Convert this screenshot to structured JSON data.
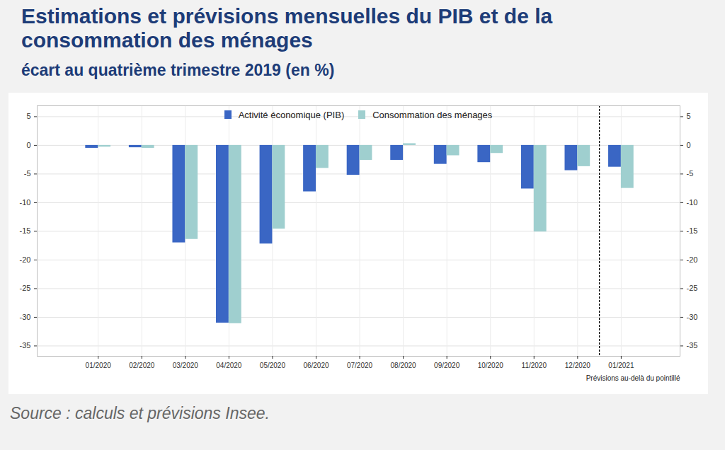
{
  "chart_data": {
    "type": "bar",
    "title": "Estimations et prévisions mensuelles du PIB et de la consommation des ménages",
    "subtitle": "écart au quatrième trimestre 2019 (en %)",
    "caption": "Source : calculs et prévisions Insee.",
    "categories": [
      "01/2020",
      "02/2020",
      "03/2020",
      "04/2020",
      "05/2020",
      "06/2020",
      "07/2020",
      "08/2020",
      "09/2020",
      "10/2020",
      "11/2020",
      "12/2020",
      "01/2021"
    ],
    "series": [
      {
        "name": "Activité économique (PIB)",
        "color": "#3a66c4",
        "values": [
          -0.5,
          -0.4,
          -17.0,
          -31.0,
          -17.2,
          -8.1,
          -5.2,
          -2.6,
          -3.3,
          -3.0,
          -7.6,
          -4.4,
          -3.8
        ]
      },
      {
        "name": "Consommation des ménages",
        "color": "#9fcfcf",
        "values": [
          -0.3,
          -0.5,
          -16.4,
          -31.1,
          -14.6,
          -4.0,
          -2.6,
          0.3,
          -1.8,
          -1.4,
          -15.1,
          -3.7,
          -7.5
        ]
      }
    ],
    "annotations": [
      {
        "text": "Prévisions au-delà du pointillé",
        "x": "01/2021"
      }
    ],
    "ylim": [
      -36.8,
      6.9
    ],
    "yticks": [
      -35,
      -30,
      -25,
      -20,
      -15,
      -10,
      -5,
      0,
      5
    ],
    "grid": true,
    "legend": "top"
  }
}
